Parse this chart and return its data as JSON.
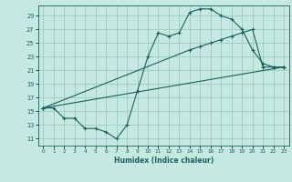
{
  "background_color": "#c5e8e0",
  "grid_color": "#9ecfc5",
  "line_color": "#1a6060",
  "xlabel": "Humidex (Indice chaleur)",
  "xlim": [
    -0.5,
    23.5
  ],
  "ylim": [
    10.0,
    30.5
  ],
  "yticks": [
    11,
    13,
    15,
    17,
    19,
    21,
    23,
    25,
    27,
    29
  ],
  "xticks": [
    0,
    1,
    2,
    3,
    4,
    5,
    6,
    7,
    8,
    9,
    10,
    11,
    12,
    13,
    14,
    15,
    16,
    17,
    18,
    19,
    20,
    21,
    22,
    23
  ],
  "line1_x": [
    0,
    1,
    2,
    3,
    4,
    5,
    6,
    7,
    8,
    9,
    10,
    11,
    12,
    13,
    14,
    15,
    16,
    17,
    18,
    19,
    20,
    21,
    22,
    23
  ],
  "line1_y": [
    15.5,
    15.5,
    14.0,
    14.0,
    12.5,
    12.5,
    12.0,
    11.0,
    13.0,
    18.0,
    23.0,
    26.5,
    26.0,
    26.5,
    29.5,
    30.0,
    30.0,
    29.0,
    28.5,
    27.0,
    24.0,
    22.0,
    21.5,
    21.5
  ],
  "line2_x": [
    0,
    14,
    15,
    16,
    17,
    18,
    19,
    20,
    21,
    22,
    23
  ],
  "line2_y": [
    15.5,
    24.0,
    24.5,
    25.0,
    25.5,
    26.0,
    26.5,
    27.0,
    21.5,
    21.5,
    21.5
  ],
  "line3_x": [
    0,
    23
  ],
  "line3_y": [
    15.5,
    21.5
  ],
  "marker": "+"
}
